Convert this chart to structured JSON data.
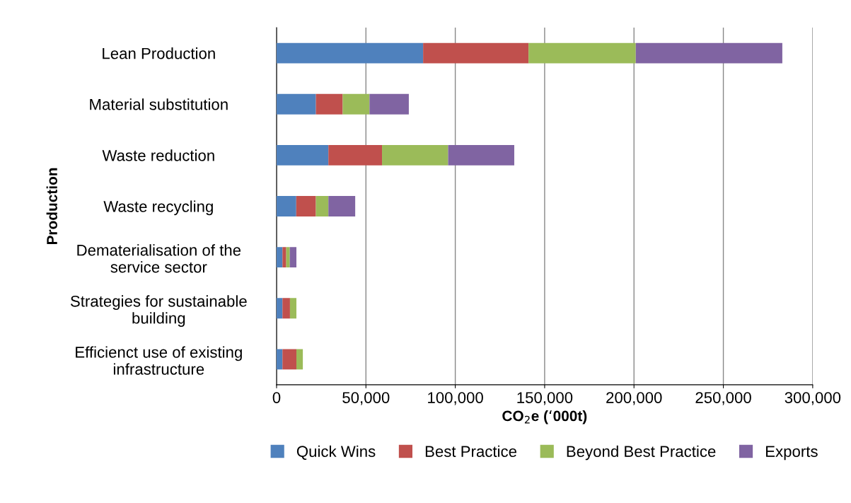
{
  "chart_data": {
    "type": "bar",
    "orientation": "horizontal",
    "stacked": true,
    "xlabel": "CO$_{2}$e (‘000t)",
    "ylabel": "Production",
    "categories": [
      "Lean Production",
      "Material substitution",
      "Waste reduction",
      "Waste recycling",
      "Dematerialisation of the service sector",
      "Strategies for sustainable building",
      "Efficienct use of existing infrastructure"
    ],
    "series": [
      {
        "name": "Quick Wins",
        "color": "#4f81bd",
        "values": [
          82000,
          22000,
          29000,
          11000,
          3300,
          3300,
          3300
        ]
      },
      {
        "name": "Best Practice",
        "color": "#c0504d",
        "values": [
          59000,
          15000,
          30000,
          11000,
          2100,
          4200,
          7800
        ]
      },
      {
        "name": "Beyond Best Practice",
        "color": "#9bbb59",
        "values": [
          60000,
          15000,
          37000,
          7000,
          2000,
          3600,
          3600
        ]
      },
      {
        "name": "Exports",
        "color": "#8064a2",
        "values": [
          82000,
          22000,
          37000,
          15000,
          3700,
          0,
          0
        ]
      }
    ],
    "xlim": [
      0,
      300000
    ],
    "xticks": [
      0,
      {
        "value": 50000,
        "label": "50,000"
      },
      {
        "value": 100000,
        "label": "100,000"
      },
      {
        "value": 150000,
        "label": "150,000"
      },
      {
        "value": 200000,
        "label": "200,000"
      },
      {
        "value": 250000,
        "label": "250,000"
      },
      {
        "value": 300000,
        "label": "300,000"
      }
    ],
    "grid": "x",
    "legend": "bottom"
  }
}
